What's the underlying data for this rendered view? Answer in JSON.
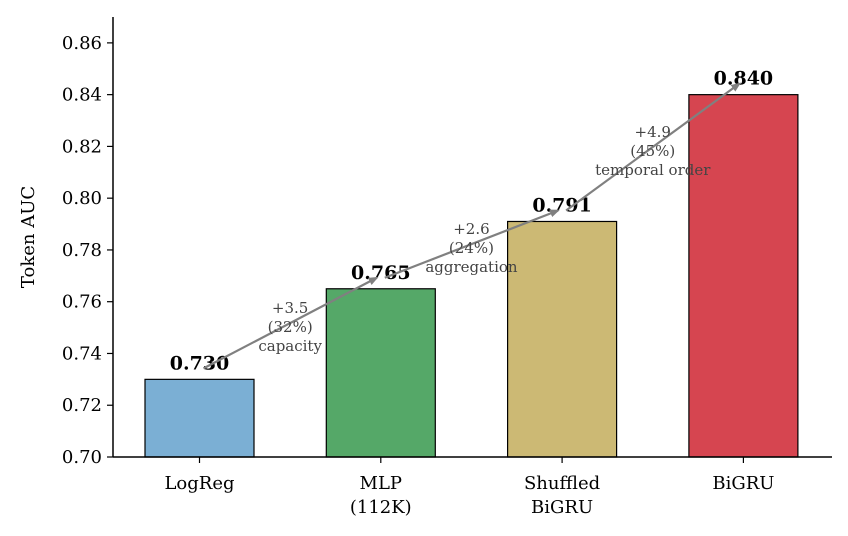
{
  "chart_data": {
    "type": "bar",
    "categories": [
      [
        "LogReg"
      ],
      [
        "MLP",
        "(112K)"
      ],
      [
        "Shuffled",
        "BiGRU"
      ],
      [
        "BiGRU"
      ]
    ],
    "values": [
      0.73,
      0.765,
      0.791,
      0.84
    ],
    "value_labels": [
      "0.730",
      "0.765",
      "0.791",
      "0.840"
    ],
    "colors": [
      "#7bafd4",
      "#55a868",
      "#ccb974",
      "#d64550"
    ],
    "ylabel": "Token AUC",
    "ylim": [
      0.7,
      0.87
    ],
    "yticks": [
      0.7,
      0.72,
      0.74,
      0.76,
      0.78,
      0.8,
      0.82,
      0.84,
      0.86
    ],
    "ytick_labels": [
      "0.70",
      "0.72",
      "0.74",
      "0.76",
      "0.78",
      "0.80",
      "0.82",
      "0.84",
      "0.86"
    ],
    "grid": false,
    "annotations": [
      {
        "from": 0,
        "to": 1,
        "lines": [
          "+3.5",
          "(32%)",
          "capacity"
        ],
        "arrow_color": "#808080"
      },
      {
        "from": 1,
        "to": 2,
        "lines": [
          "+2.6",
          "(24%)",
          "aggregation"
        ],
        "arrow_color": "#808080"
      },
      {
        "from": 2,
        "to": 3,
        "lines": [
          "+4.9",
          "(45%)",
          "temporal order"
        ],
        "arrow_color": "#808080"
      }
    ]
  }
}
